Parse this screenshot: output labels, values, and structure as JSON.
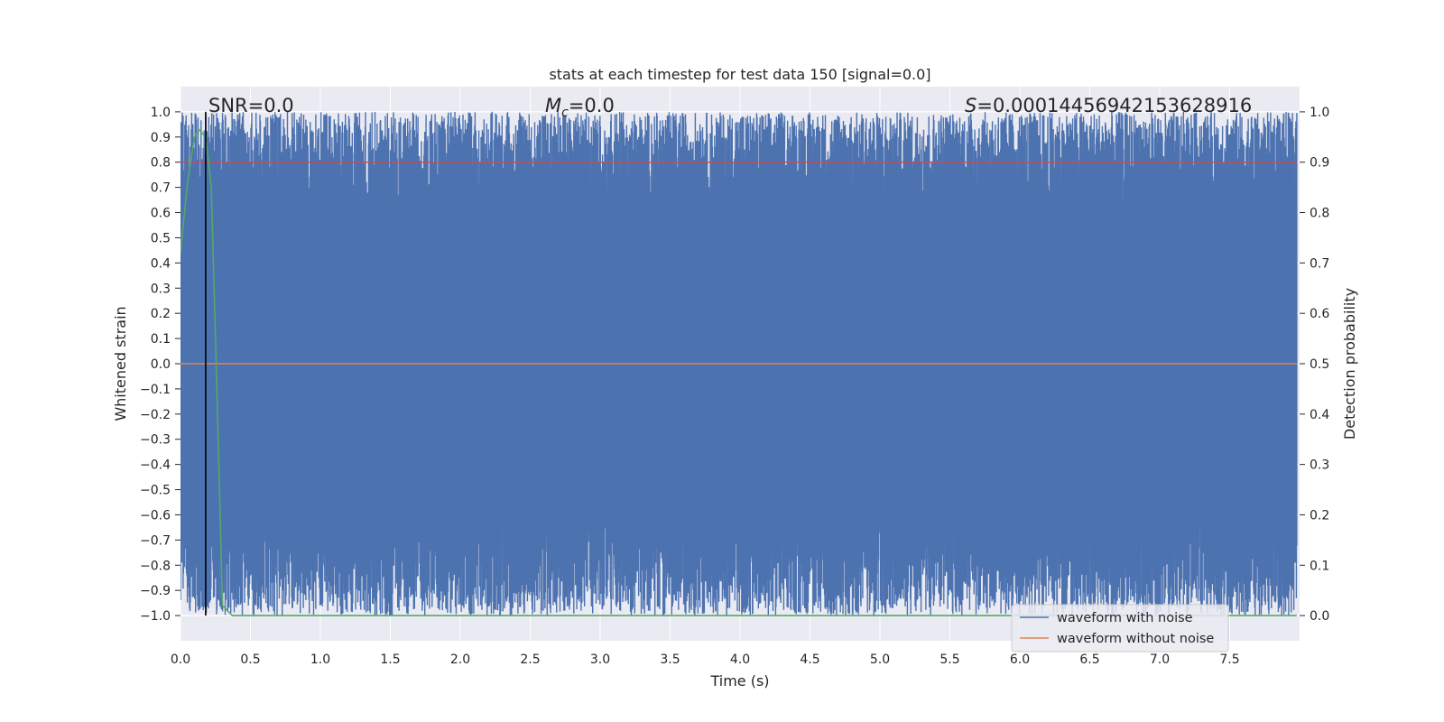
{
  "chart_data": {
    "type": "line",
    "title": "stats at each timestep for test data 150 [signal=0.0]",
    "xlabel": "Time (s)",
    "ylabel_left": "Whitened strain",
    "ylabel_right": "Detection probability",
    "xlim": [
      0.0,
      8.0
    ],
    "ylim_left": [
      -1.1,
      1.1
    ],
    "ylim_right": [
      -0.05,
      1.05
    ],
    "x_ticks": [
      0.0,
      0.5,
      1.0,
      1.5,
      2.0,
      2.5,
      3.0,
      3.5,
      4.0,
      4.5,
      5.0,
      5.5,
      6.0,
      6.5,
      7.0,
      7.5
    ],
    "x_tick_labels": [
      "0.0",
      "0.5",
      "1.0",
      "1.5",
      "2.0",
      "2.5",
      "3.0",
      "3.5",
      "4.0",
      "4.5",
      "5.0",
      "5.5",
      "6.0",
      "6.5",
      "7.0",
      "7.5"
    ],
    "y_left_ticks": [
      1.0,
      0.9,
      0.8,
      0.7,
      0.6,
      0.5,
      0.4,
      0.3,
      0.2,
      0.1,
      0.0,
      -0.1,
      -0.2,
      -0.3,
      -0.4,
      -0.5,
      -0.6,
      -0.7,
      -0.8,
      -0.9,
      -1.0
    ],
    "y_left_tick_labels": [
      "1.0",
      "0.9",
      "0.8",
      "0.7",
      "0.6",
      "0.5",
      "0.4",
      "0.3",
      "0.2",
      "0.1",
      "0.0",
      "−0.1",
      "−0.2",
      "−0.3",
      "−0.4",
      "−0.5",
      "−0.6",
      "−0.7",
      "−0.8",
      "−0.9",
      "−1.0"
    ],
    "y_right_ticks": [
      1.0,
      0.9,
      0.8,
      0.7,
      0.6,
      0.5,
      0.4,
      0.3,
      0.2,
      0.1,
      0.0
    ],
    "y_right_tick_labels": [
      "1.0",
      "0.9",
      "0.8",
      "0.7",
      "0.6",
      "0.5",
      "0.4",
      "0.3",
      "0.2",
      "0.1",
      "0.0"
    ],
    "grid": true,
    "legend_position": "bottom-right",
    "annotations": {
      "snr": "SNR=0.0",
      "mc_symbol": "M",
      "mc_subscript": "c",
      "mc_value": "=0.0",
      "s_symbol": "S",
      "s_value": "=0.00014456942153628916"
    },
    "marker_line_x": 0.18,
    "series": [
      {
        "name": "waveform with noise",
        "axis": "left",
        "color": "#4c72b0",
        "description": "dense whitened noise, amplitude ~1 filling range"
      },
      {
        "name": "waveform without noise",
        "axis": "left",
        "color": "#dd8452",
        "values_constant": 0.0
      },
      {
        "axis": "right",
        "color": "#55a868",
        "x": [
          0.0,
          0.05,
          0.1,
          0.13,
          0.18,
          0.22,
          0.25,
          0.3,
          0.37,
          8.0
        ],
        "y": [
          0.72,
          0.86,
          0.95,
          0.965,
          0.95,
          0.85,
          0.55,
          0.02,
          0.0,
          0.0
        ]
      },
      {
        "axis": "right",
        "color": "#c44e52",
        "values_constant": 0.9
      }
    ]
  }
}
